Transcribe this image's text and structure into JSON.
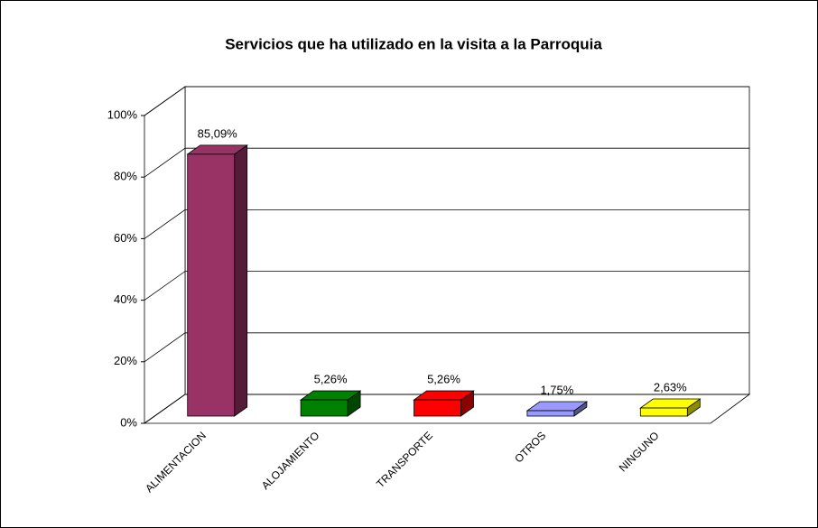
{
  "chart_data": {
    "type": "bar3d",
    "title": "Servicios que ha utilizado en la visita a la Parroquia",
    "categories": [
      "ALIMENTACION",
      "ALOJAMIENTO",
      "TRANSPORTE",
      "OTROS",
      "NINGUNO"
    ],
    "values": [
      85.09,
      5.26,
      5.26,
      1.75,
      2.63
    ],
    "value_labels": [
      "85,09%",
      "5,26%",
      "5,26%",
      "1,75%",
      "2,63%"
    ],
    "colors": [
      "#993366",
      "#008000",
      "#ff0000",
      "#9999ff",
      "#ffff00"
    ],
    "ylim": [
      0,
      100
    ],
    "yticks": [
      {
        "value": 0,
        "label": "0%"
      },
      {
        "value": 20,
        "label": "20%"
      },
      {
        "value": 40,
        "label": "40%"
      },
      {
        "value": 60,
        "label": "60%"
      },
      {
        "value": 80,
        "label": "80%"
      },
      {
        "value": 100,
        "label": "100%"
      }
    ],
    "grid": true
  }
}
